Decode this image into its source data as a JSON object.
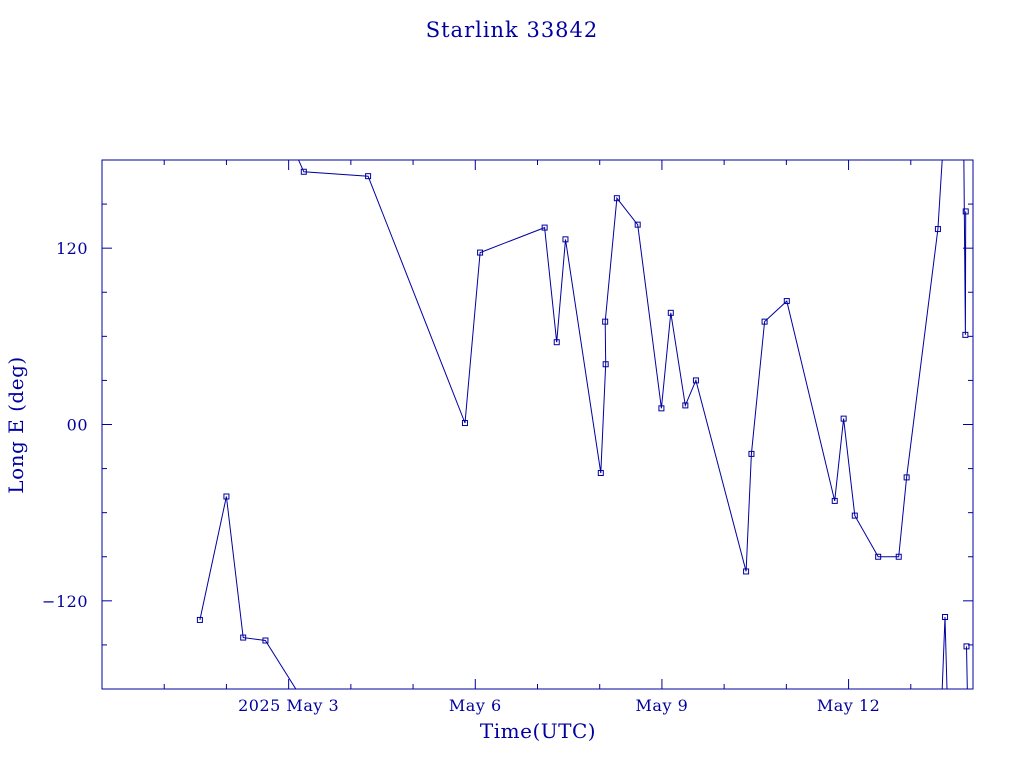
{
  "chart_data": {
    "type": "line",
    "title": "Starlink 33842",
    "xlabel": "Time(UTC)",
    "ylabel": "Long E (deg)",
    "xlim": [
      "2025-04-30T00:00",
      "2025-05-14T00:00"
    ],
    "ylim": [
      -180,
      180
    ],
    "colors": {
      "line": "#0000a0",
      "axis": "#0000a0"
    },
    "x_ticks": [
      {
        "value": "2025-05-03",
        "label": "2025 May  3"
      },
      {
        "value": "2025-05-06",
        "label": "May  6"
      },
      {
        "value": "2025-05-09",
        "label": "May  9"
      },
      {
        "value": "2025-05-12",
        "label": "May 12"
      }
    ],
    "y_ticks": [
      {
        "value": 120,
        "label": "120"
      },
      {
        "value": 0,
        "label": "00"
      },
      {
        "value": -120,
        "label": "−120"
      }
    ],
    "segments": [
      [
        [
          "2025-05-01T13:46",
          -133
        ],
        [
          "2025-05-02T00:00",
          -49
        ],
        [
          "2025-05-02T06:28",
          -145
        ],
        [
          "2025-05-02T15:03",
          -147
        ],
        [
          "2025-05-03T03:50",
          -183
        ]
      ],
      [
        [
          "2025-05-03T02:35",
          185
        ],
        [
          "2025-05-03T05:51",
          172
        ],
        [
          "2025-05-04T06:39",
          169
        ],
        [
          "2025-05-05T20:01",
          1
        ],
        [
          "2025-05-06T01:51",
          117
        ],
        [
          "2025-05-07T02:45",
          134
        ],
        [
          "2025-05-07T07:25",
          56
        ],
        [
          "2025-05-07T10:47",
          126
        ],
        [
          "2025-05-08T00:25",
          -33
        ],
        [
          "2025-05-08T02:18",
          41
        ],
        [
          "2025-05-08T02:06",
          70
        ],
        [
          "2025-05-08T06:37",
          154
        ],
        [
          "2025-05-08T14:39",
          136
        ],
        [
          "2025-05-08T23:48",
          11
        ],
        [
          "2025-05-09T03:25",
          76
        ],
        [
          "2025-05-09T09:02",
          13
        ],
        [
          "2025-05-09T13:07",
          30
        ],
        [
          "2025-05-10T08:28",
          -100
        ],
        [
          "2025-05-10T10:32",
          -20
        ],
        [
          "2025-05-10T15:36",
          70
        ],
        [
          "2025-05-11T00:10",
          84
        ],
        [
          "2025-05-11T18:40",
          -52
        ],
        [
          "2025-05-11T22:06",
          4
        ],
        [
          "2025-05-12T02:24",
          -62
        ],
        [
          "2025-05-12T11:25",
          -90
        ],
        [
          "2025-05-12T19:21",
          -90
        ],
        [
          "2025-05-12T22:24",
          -36
        ],
        [
          "2025-05-13T10:28",
          133
        ],
        [
          "2025-05-13T12:08",
          180
        ]
      ],
      [
        [
          "2025-05-13T12:08",
          -180
        ],
        [
          "2025-05-13T13:13",
          -131
        ],
        [
          "2025-05-13T13:59",
          -180
        ]
      ],
      [
        [
          "2025-05-13T14:00",
          180
        ],
        [
          "2025-05-13T20:27",
          185
        ],
        [
          "2025-05-13T21:03",
          61
        ],
        [
          "2025-05-13T21:12",
          145
        ]
      ],
      [
        [
          "2025-05-13T21:30",
          -151
        ],
        [
          "2025-05-13T21:50",
          -183
        ]
      ]
    ],
    "markers_hidden_at_first_or_last": false,
    "grid": false,
    "legend": "none"
  }
}
